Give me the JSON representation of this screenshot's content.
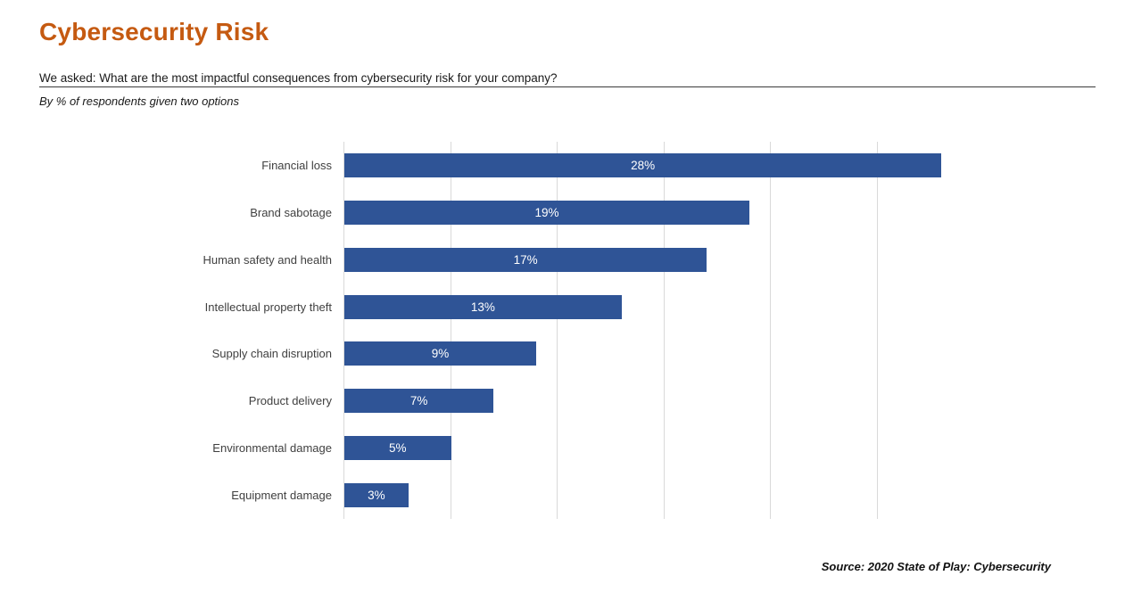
{
  "header": {
    "title": "Cybersecurity Risk",
    "question": "We asked: What are the most impactful consequences from cybersecurity risk for your company?",
    "note": "By % of respondents given two options"
  },
  "footer": {
    "source": "Source: 2020 State of Play: Cybersecurity"
  },
  "colors": {
    "title": "#C55A11",
    "bar": "#2F5496",
    "gridline": "#D9D9D9",
    "category_label": "#404040",
    "value_label": "#FFFFFF"
  },
  "chart_data": {
    "type": "bar",
    "orientation": "horizontal",
    "title": "Cybersecurity Risk",
    "xlabel": "",
    "ylabel": "",
    "categories": [
      "Financial loss",
      "Brand sabotage",
      "Human safety and health",
      "Intellectual property theft",
      "Supply chain disruption",
      "Product delivery",
      "Environmental damage",
      "Equipment damage"
    ],
    "values": [
      28,
      19,
      17,
      13,
      9,
      7,
      5,
      3
    ],
    "value_labels": [
      "28%",
      "19%",
      "17%",
      "13%",
      "9%",
      "7%",
      "5%",
      "3%"
    ],
    "value_label_position": "inside-center",
    "xlim": [
      0,
      28
    ],
    "gridlines": [
      0,
      5,
      10,
      15,
      20,
      25
    ],
    "grid": true,
    "legend": false,
    "axis_tick_labels_shown": false
  }
}
